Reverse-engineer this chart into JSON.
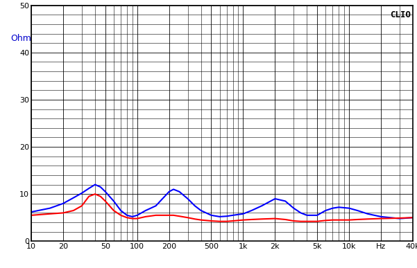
{
  "title": "CLIO",
  "unit_label": "Ohm",
  "xmin": 10,
  "xmax": 40000,
  "ymin": 0,
  "ymax": 50,
  "yticks": [
    0,
    10,
    20,
    30,
    40,
    50
  ],
  "xtick_labels": [
    "10",
    "20",
    "50",
    "100",
    "200",
    "500",
    "1k",
    "2k",
    "5k",
    "10k",
    "Hz",
    "40k"
  ],
  "xtick_positions": [
    10,
    20,
    50,
    100,
    200,
    500,
    1000,
    2000,
    5000,
    10000,
    20000,
    40000
  ],
  "background_color": "#ffffff",
  "grid_color": "#000000",
  "blue_color": "#0000ff",
  "red_color": "#ff0000",
  "line_width": 1.5,
  "blue_data": [
    [
      10,
      6.2
    ],
    [
      15,
      7.0
    ],
    [
      20,
      8.0
    ],
    [
      25,
      9.2
    ],
    [
      30,
      10.2
    ],
    [
      35,
      11.2
    ],
    [
      40,
      12.0
    ],
    [
      45,
      11.5
    ],
    [
      50,
      10.5
    ],
    [
      60,
      8.5
    ],
    [
      70,
      6.5
    ],
    [
      80,
      5.5
    ],
    [
      90,
      5.2
    ],
    [
      100,
      5.5
    ],
    [
      120,
      6.5
    ],
    [
      150,
      7.5
    ],
    [
      200,
      10.5
    ],
    [
      220,
      11.0
    ],
    [
      250,
      10.5
    ],
    [
      300,
      9.0
    ],
    [
      350,
      7.5
    ],
    [
      400,
      6.5
    ],
    [
      500,
      5.5
    ],
    [
      600,
      5.2
    ],
    [
      700,
      5.3
    ],
    [
      800,
      5.5
    ],
    [
      1000,
      5.8
    ],
    [
      1200,
      6.5
    ],
    [
      1500,
      7.5
    ],
    [
      2000,
      9.0
    ],
    [
      2500,
      8.5
    ],
    [
      3000,
      7.0
    ],
    [
      3500,
      6.0
    ],
    [
      4000,
      5.5
    ],
    [
      5000,
      5.5
    ],
    [
      6000,
      6.5
    ],
    [
      7000,
      7.0
    ],
    [
      8000,
      7.2
    ],
    [
      10000,
      7.0
    ],
    [
      12000,
      6.5
    ],
    [
      15000,
      5.8
    ],
    [
      20000,
      5.2
    ],
    [
      30000,
      4.8
    ],
    [
      40000,
      5.0
    ]
  ],
  "red_data": [
    [
      10,
      5.5
    ],
    [
      15,
      5.8
    ],
    [
      20,
      6.0
    ],
    [
      25,
      6.5
    ],
    [
      30,
      7.5
    ],
    [
      35,
      9.5
    ],
    [
      40,
      10.0
    ],
    [
      45,
      9.5
    ],
    [
      50,
      8.5
    ],
    [
      60,
      6.5
    ],
    [
      70,
      5.5
    ],
    [
      80,
      5.0
    ],
    [
      90,
      4.8
    ],
    [
      100,
      4.8
    ],
    [
      120,
      5.2
    ],
    [
      150,
      5.5
    ],
    [
      200,
      5.5
    ],
    [
      220,
      5.5
    ],
    [
      250,
      5.3
    ],
    [
      300,
      5.0
    ],
    [
      350,
      4.7
    ],
    [
      400,
      4.5
    ],
    [
      500,
      4.3
    ],
    [
      600,
      4.2
    ],
    [
      700,
      4.2
    ],
    [
      800,
      4.3
    ],
    [
      1000,
      4.5
    ],
    [
      1200,
      4.6
    ],
    [
      1500,
      4.7
    ],
    [
      2000,
      4.8
    ],
    [
      2500,
      4.6
    ],
    [
      3000,
      4.3
    ],
    [
      3500,
      4.2
    ],
    [
      4000,
      4.2
    ],
    [
      5000,
      4.2
    ],
    [
      6000,
      4.4
    ],
    [
      7000,
      4.5
    ],
    [
      8000,
      4.5
    ],
    [
      10000,
      4.5
    ],
    [
      12000,
      4.6
    ],
    [
      15000,
      4.7
    ],
    [
      20000,
      4.8
    ],
    [
      30000,
      4.9
    ],
    [
      40000,
      5.0
    ]
  ]
}
